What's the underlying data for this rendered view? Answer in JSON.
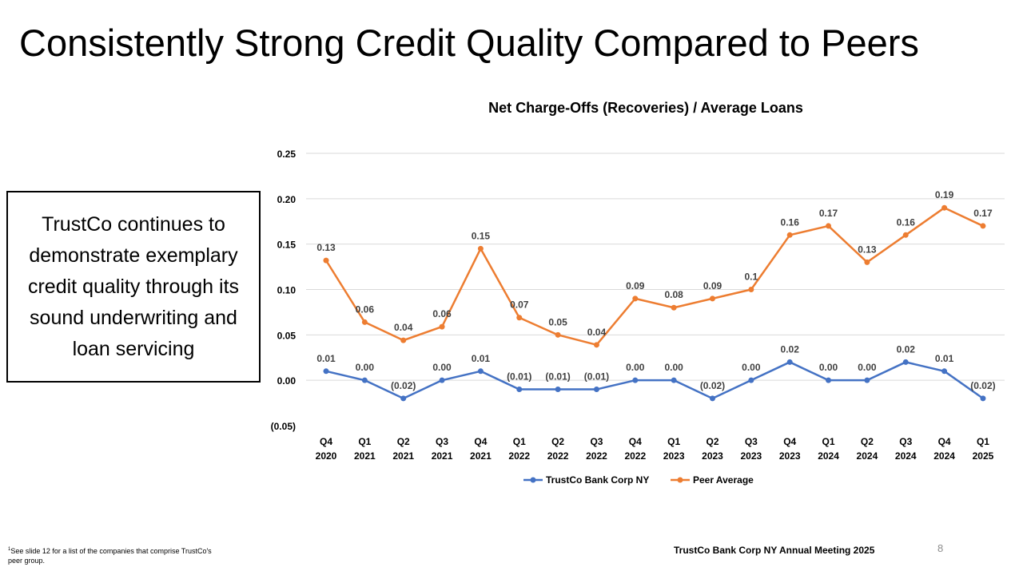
{
  "slide": {
    "title": "Consistently Strong Credit Quality Compared to Peers",
    "callout": "TrustCo continues to demonstrate exemplary credit quality through its sound underwriting and loan servicing",
    "footnote_sup": "1",
    "footnote": "See slide 12 for a list of the companies that comprise TrustCo's peer group.",
    "footer": "TrustCo Bank Corp NY Annual Meeting 2025",
    "page_number": "8"
  },
  "chart_data": {
    "type": "line",
    "title": "Net Charge-Offs (Recoveries) / Average Loans",
    "xlabel": "",
    "ylabel": "",
    "ylim": [
      -0.05,
      0.25
    ],
    "yticks": [
      -0.05,
      0.0,
      0.05,
      0.1,
      0.15,
      0.2,
      0.25
    ],
    "ytick_labels": [
      "(0.05)",
      "0.00",
      "0.05",
      "0.10",
      "0.15",
      "0.20",
      "0.25"
    ],
    "grid": true,
    "legend_position": "bottom",
    "categories": [
      [
        "Q4",
        "2020"
      ],
      [
        "Q1",
        "2021"
      ],
      [
        "Q2",
        "2021"
      ],
      [
        "Q3",
        "2021"
      ],
      [
        "Q4",
        "2021"
      ],
      [
        "Q1",
        "2022"
      ],
      [
        "Q2",
        "2022"
      ],
      [
        "Q3",
        "2022"
      ],
      [
        "Q4",
        "2022"
      ],
      [
        "Q1",
        "2023"
      ],
      [
        "Q2",
        "2023"
      ],
      [
        "Q3",
        "2023"
      ],
      [
        "Q4",
        "2023"
      ],
      [
        "Q1",
        "2024"
      ],
      [
        "Q2",
        "2024"
      ],
      [
        "Q3",
        "2024"
      ],
      [
        "Q4",
        "2024"
      ],
      [
        "Q1",
        "2025"
      ]
    ],
    "series": [
      {
        "name": "TrustCo Bank Corp NY",
        "color": "#4472c4",
        "values": [
          0.01,
          0.0,
          -0.02,
          0.0,
          0.01,
          -0.01,
          -0.01,
          -0.01,
          0.0,
          0.0,
          -0.02,
          0.0,
          0.02,
          0.0,
          0.0,
          0.02,
          0.01,
          -0.02
        ],
        "labels": [
          "0.01",
          "0.00",
          "(0.02)",
          "0.00",
          "0.01",
          "(0.01)",
          "(0.01)",
          "(0.01)",
          "0.00",
          "0.00",
          "(0.02)",
          "0.00",
          "0.02",
          "0.00",
          "0.00",
          "0.02",
          "0.01",
          "(0.02)"
        ]
      },
      {
        "name": "Peer Average",
        "color": "#ed7d31",
        "values": [
          0.132,
          0.064,
          0.044,
          0.059,
          0.145,
          0.069,
          0.05,
          0.039,
          0.09,
          0.08,
          0.09,
          0.1,
          0.16,
          0.17,
          0.13,
          0.16,
          0.19,
          0.17
        ],
        "labels": [
          "0.13",
          "0.06",
          "0.04",
          "0.06",
          "0.15",
          "0.07",
          "0.05",
          "0.04",
          "0.09",
          "0.08",
          "0.09",
          "0.1",
          "0.16",
          "0.17",
          "0.13",
          "0.16",
          "0.19",
          "0.17"
        ]
      }
    ]
  }
}
